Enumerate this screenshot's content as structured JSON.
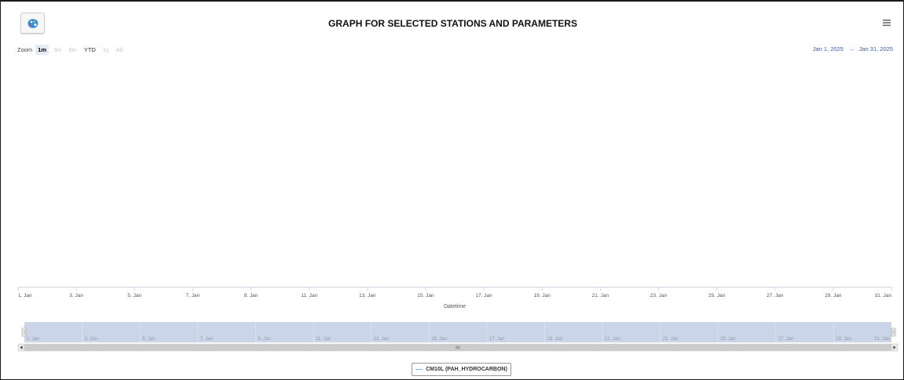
{
  "header": {
    "title": "GRAPH FOR SELECTED STATIONS AND PARAMETERS"
  },
  "toolbar": {
    "palette_icon": "palette-icon",
    "menu_icon": "hamburger-menu-icon"
  },
  "zoom": {
    "label": "Zoom",
    "buttons": [
      {
        "label": "1m",
        "state": "active"
      },
      {
        "label": "3m",
        "state": "disabled"
      },
      {
        "label": "6m",
        "state": "disabled"
      },
      {
        "label": "YTD",
        "state": "enabled"
      },
      {
        "label": "1y",
        "state": "disabled"
      },
      {
        "label": "All",
        "state": "disabled"
      }
    ]
  },
  "range": {
    "from": "Jan 1, 2025",
    "arrow": "→",
    "to": "Jan 31, 2025"
  },
  "chart_data": {
    "type": "line",
    "title": "GRAPH FOR SELECTED STATIONS AND PARAMETERS",
    "xlabel": "Datetime",
    "ylabel": "",
    "x_type": "datetime",
    "xlim": [
      "2025-01-01",
      "2025-01-31"
    ],
    "x_ticks": [
      "1. Jan",
      "3. Jan",
      "5. Jan",
      "7. Jan",
      "9. Jan",
      "11. Jan",
      "13. Jan",
      "15. Jan",
      "17. Jan",
      "19. Jan",
      "21. Jan",
      "23. Jan",
      "25. Jan",
      "27. Jan",
      "29. Jan",
      "31. Jan"
    ],
    "series": [
      {
        "name": "CM10L (PAH_HYDROCARBON)",
        "color": "#7cb5ec",
        "values": []
      }
    ],
    "grid": false,
    "legend_position": "bottom-center",
    "navigator": true
  },
  "colors": {
    "navigator_mask": "#cbd5ea",
    "range_text": "#335cad",
    "series": "#7cb5ec"
  }
}
